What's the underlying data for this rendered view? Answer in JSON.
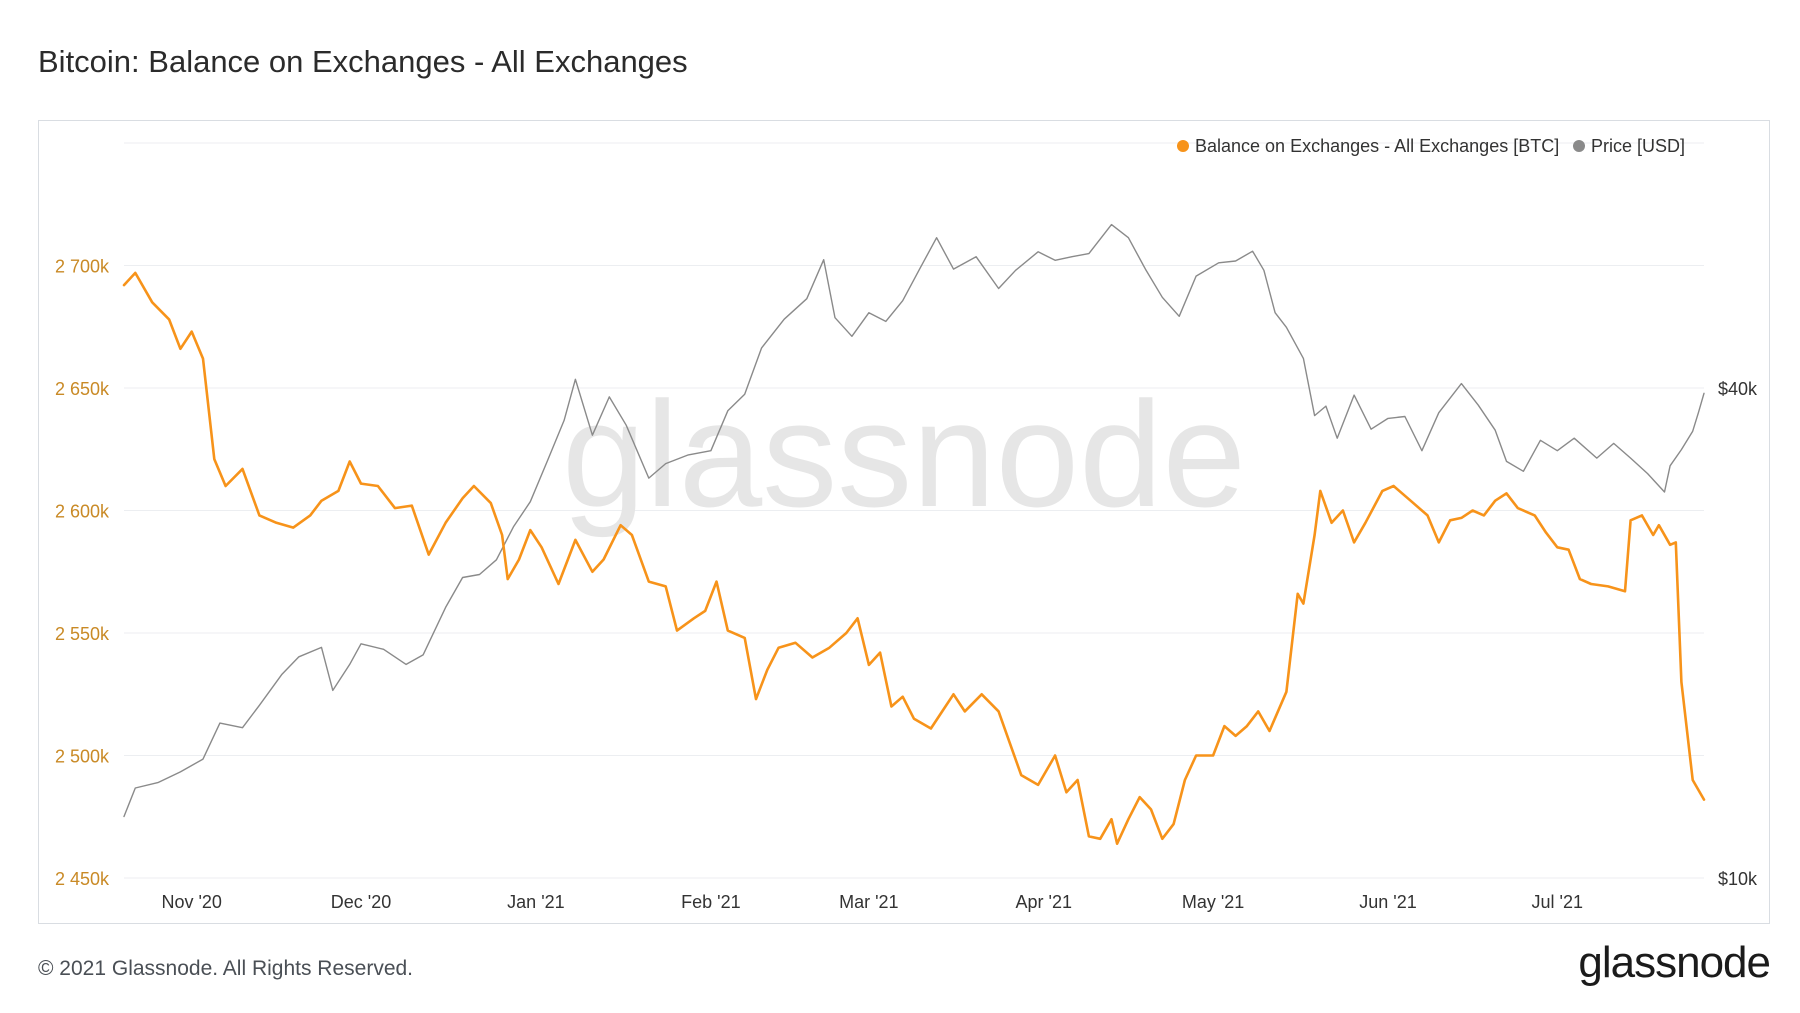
{
  "title": "Bitcoin: Balance on Exchanges - All Exchanges",
  "footer": "© 2021 Glassnode. All Rights Reserved.",
  "brand": "glassnode",
  "watermark": "glassnode",
  "chart_data": {
    "type": "line",
    "title": "Bitcoin: Balance on Exchanges - All Exchanges",
    "legend_position": "top-right",
    "grid": true,
    "x_range": [
      "2020-10-20",
      "2021-07-27"
    ],
    "x_ticks": [
      {
        "label": "Nov '20",
        "date": "2020-11-01"
      },
      {
        "label": "Dec '20",
        "date": "2020-12-01"
      },
      {
        "label": "Jan '21",
        "date": "2021-01-01"
      },
      {
        "label": "Feb '21",
        "date": "2021-02-01"
      },
      {
        "label": "Mar '21",
        "date": "2021-03-01"
      },
      {
        "label": "Apr '21",
        "date": "2021-04-01"
      },
      {
        "label": "May '21",
        "date": "2021-05-01"
      },
      {
        "label": "Jun '21",
        "date": "2021-06-01"
      },
      {
        "label": "Jul '21",
        "date": "2021-07-01"
      }
    ],
    "y_left": {
      "ylim": [
        2450000,
        2750000
      ],
      "ticks": [
        {
          "label": "2 450k",
          "value": 2450000
        },
        {
          "label": "2 500k",
          "value": 2500000
        },
        {
          "label": "2 550k",
          "value": 2550000
        },
        {
          "label": "2 600k",
          "value": 2600000
        },
        {
          "label": "2 650k",
          "value": 2650000
        },
        {
          "label": "2 700k",
          "value": 2700000
        }
      ]
    },
    "y_right": {
      "scale": "log",
      "ylim": [
        10000,
        80000
      ],
      "ticks": [
        {
          "label": "$10k",
          "value": 10000
        },
        {
          "label": "$40k",
          "value": 40000
        }
      ]
    },
    "series": [
      {
        "name": "Balance on Exchanges - All Exchanges [BTC]",
        "color": "#f7931a",
        "axis": "left",
        "points": [
          [
            "2020-10-20",
            2692000
          ],
          [
            "2020-10-22",
            2697000
          ],
          [
            "2020-10-25",
            2685000
          ],
          [
            "2020-10-28",
            2678000
          ],
          [
            "2020-10-30",
            2666000
          ],
          [
            "2020-11-01",
            2673000
          ],
          [
            "2020-11-03",
            2662000
          ],
          [
            "2020-11-05",
            2621000
          ],
          [
            "2020-11-07",
            2610000
          ],
          [
            "2020-11-10",
            2617000
          ],
          [
            "2020-11-13",
            2598000
          ],
          [
            "2020-11-16",
            2595000
          ],
          [
            "2020-11-19",
            2593000
          ],
          [
            "2020-11-22",
            2598000
          ],
          [
            "2020-11-24",
            2604000
          ],
          [
            "2020-11-27",
            2608000
          ],
          [
            "2020-11-29",
            2620000
          ],
          [
            "2020-12-01",
            2611000
          ],
          [
            "2020-12-04",
            2610000
          ],
          [
            "2020-12-07",
            2601000
          ],
          [
            "2020-12-10",
            2602000
          ],
          [
            "2020-12-13",
            2582000
          ],
          [
            "2020-12-16",
            2595000
          ],
          [
            "2020-12-19",
            2605000
          ],
          [
            "2020-12-21",
            2610000
          ],
          [
            "2020-12-24",
            2603000
          ],
          [
            "2020-12-26",
            2590000
          ],
          [
            "2020-12-27",
            2572000
          ],
          [
            "2020-12-29",
            2580000
          ],
          [
            "2020-12-31",
            2592000
          ],
          [
            "2021-01-02",
            2585000
          ],
          [
            "2021-01-05",
            2570000
          ],
          [
            "2021-01-08",
            2588000
          ],
          [
            "2021-01-11",
            2575000
          ],
          [
            "2021-01-13",
            2580000
          ],
          [
            "2021-01-16",
            2594000
          ],
          [
            "2021-01-18",
            2590000
          ],
          [
            "2021-01-21",
            2571000
          ],
          [
            "2021-01-24",
            2569000
          ],
          [
            "2021-01-26",
            2551000
          ],
          [
            "2021-01-29",
            2556000
          ],
          [
            "2021-01-31",
            2559000
          ],
          [
            "2021-02-02",
            2571000
          ],
          [
            "2021-02-04",
            2551000
          ],
          [
            "2021-02-07",
            2548000
          ],
          [
            "2021-02-09",
            2523000
          ],
          [
            "2021-02-11",
            2535000
          ],
          [
            "2021-02-13",
            2544000
          ],
          [
            "2021-02-16",
            2546000
          ],
          [
            "2021-02-19",
            2540000
          ],
          [
            "2021-02-22",
            2544000
          ],
          [
            "2021-02-25",
            2550000
          ],
          [
            "2021-02-27",
            2556000
          ],
          [
            "2021-03-01",
            2537000
          ],
          [
            "2021-03-03",
            2542000
          ],
          [
            "2021-03-05",
            2520000
          ],
          [
            "2021-03-07",
            2524000
          ],
          [
            "2021-03-09",
            2515000
          ],
          [
            "2021-03-12",
            2511000
          ],
          [
            "2021-03-14",
            2518000
          ],
          [
            "2021-03-16",
            2525000
          ],
          [
            "2021-03-18",
            2518000
          ],
          [
            "2021-03-21",
            2525000
          ],
          [
            "2021-03-24",
            2518000
          ],
          [
            "2021-03-26",
            2505000
          ],
          [
            "2021-03-28",
            2492000
          ],
          [
            "2021-03-31",
            2488000
          ],
          [
            "2021-04-03",
            2500000
          ],
          [
            "2021-04-05",
            2485000
          ],
          [
            "2021-04-07",
            2490000
          ],
          [
            "2021-04-09",
            2467000
          ],
          [
            "2021-04-11",
            2466000
          ],
          [
            "2021-04-13",
            2474000
          ],
          [
            "2021-04-14",
            2464000
          ],
          [
            "2021-04-16",
            2474000
          ],
          [
            "2021-04-18",
            2483000
          ],
          [
            "2021-04-20",
            2478000
          ],
          [
            "2021-04-22",
            2466000
          ],
          [
            "2021-04-24",
            2472000
          ],
          [
            "2021-04-26",
            2490000
          ],
          [
            "2021-04-28",
            2500000
          ],
          [
            "2021-05-01",
            2500000
          ],
          [
            "2021-05-03",
            2512000
          ],
          [
            "2021-05-05",
            2508000
          ],
          [
            "2021-05-07",
            2512000
          ],
          [
            "2021-05-09",
            2518000
          ],
          [
            "2021-05-11",
            2510000
          ],
          [
            "2021-05-14",
            2526000
          ],
          [
            "2021-05-16",
            2566000
          ],
          [
            "2021-05-17",
            2562000
          ],
          [
            "2021-05-19",
            2590000
          ],
          [
            "2021-05-20",
            2608000
          ],
          [
            "2021-05-22",
            2595000
          ],
          [
            "2021-05-24",
            2600000
          ],
          [
            "2021-05-26",
            2587000
          ],
          [
            "2021-05-28",
            2595000
          ],
          [
            "2021-05-31",
            2608000
          ],
          [
            "2021-06-02",
            2610000
          ],
          [
            "2021-06-05",
            2604000
          ],
          [
            "2021-06-08",
            2598000
          ],
          [
            "2021-06-10",
            2587000
          ],
          [
            "2021-06-12",
            2596000
          ],
          [
            "2021-06-14",
            2597000
          ],
          [
            "2021-06-16",
            2600000
          ],
          [
            "2021-06-18",
            2598000
          ],
          [
            "2021-06-20",
            2604000
          ],
          [
            "2021-06-22",
            2607000
          ],
          [
            "2021-06-24",
            2601000
          ],
          [
            "2021-06-27",
            2598000
          ],
          [
            "2021-06-29",
            2591000
          ],
          [
            "2021-07-01",
            2585000
          ],
          [
            "2021-07-03",
            2584000
          ],
          [
            "2021-07-05",
            2572000
          ],
          [
            "2021-07-07",
            2570000
          ],
          [
            "2021-07-10",
            2569000
          ],
          [
            "2021-07-13",
            2567000
          ],
          [
            "2021-07-14",
            2596000
          ],
          [
            "2021-07-16",
            2598000
          ],
          [
            "2021-07-18",
            2590000
          ],
          [
            "2021-07-19",
            2594000
          ],
          [
            "2021-07-21",
            2586000
          ],
          [
            "2021-07-22",
            2587000
          ],
          [
            "2021-07-23",
            2530000
          ],
          [
            "2021-07-25",
            2490000
          ],
          [
            "2021-07-27",
            2482000
          ]
        ]
      },
      {
        "name": "Price [USD]",
        "color": "#8a8a8a",
        "axis": "right",
        "points": [
          [
            "2020-10-20",
            11900
          ],
          [
            "2020-10-22",
            12900
          ],
          [
            "2020-10-26",
            13100
          ],
          [
            "2020-10-30",
            13500
          ],
          [
            "2020-11-03",
            14000
          ],
          [
            "2020-11-06",
            15500
          ],
          [
            "2020-11-10",
            15300
          ],
          [
            "2020-11-13",
            16300
          ],
          [
            "2020-11-17",
            17800
          ],
          [
            "2020-11-20",
            18700
          ],
          [
            "2020-11-24",
            19200
          ],
          [
            "2020-11-26",
            17000
          ],
          [
            "2020-11-29",
            18300
          ],
          [
            "2020-12-01",
            19400
          ],
          [
            "2020-12-05",
            19100
          ],
          [
            "2020-12-09",
            18300
          ],
          [
            "2020-12-12",
            18800
          ],
          [
            "2020-12-16",
            21500
          ],
          [
            "2020-12-19",
            23400
          ],
          [
            "2020-12-22",
            23600
          ],
          [
            "2020-12-25",
            24600
          ],
          [
            "2020-12-28",
            27000
          ],
          [
            "2020-12-31",
            29000
          ],
          [
            "2021-01-03",
            32500
          ],
          [
            "2021-01-06",
            36500
          ],
          [
            "2021-01-08",
            41000
          ],
          [
            "2021-01-11",
            35000
          ],
          [
            "2021-01-14",
            39000
          ],
          [
            "2021-01-17",
            36000
          ],
          [
            "2021-01-21",
            31000
          ],
          [
            "2021-01-24",
            32300
          ],
          [
            "2021-01-28",
            33100
          ],
          [
            "2021-02-01",
            33500
          ],
          [
            "2021-02-04",
            37500
          ],
          [
            "2021-02-07",
            39300
          ],
          [
            "2021-02-10",
            44800
          ],
          [
            "2021-02-14",
            48600
          ],
          [
            "2021-02-18",
            51500
          ],
          [
            "2021-02-21",
            57500
          ],
          [
            "2021-02-23",
            48800
          ],
          [
            "2021-02-26",
            46300
          ],
          [
            "2021-03-01",
            49500
          ],
          [
            "2021-03-04",
            48300
          ],
          [
            "2021-03-07",
            51200
          ],
          [
            "2021-03-10",
            56000
          ],
          [
            "2021-03-13",
            61200
          ],
          [
            "2021-03-16",
            56000
          ],
          [
            "2021-03-20",
            58000
          ],
          [
            "2021-03-24",
            53000
          ],
          [
            "2021-03-27",
            55800
          ],
          [
            "2021-03-31",
            58800
          ],
          [
            "2021-04-03",
            57400
          ],
          [
            "2021-04-06",
            58000
          ],
          [
            "2021-04-09",
            58500
          ],
          [
            "2021-04-13",
            63500
          ],
          [
            "2021-04-16",
            61200
          ],
          [
            "2021-04-19",
            56000
          ],
          [
            "2021-04-22",
            51700
          ],
          [
            "2021-04-25",
            49000
          ],
          [
            "2021-04-28",
            54900
          ],
          [
            "2021-05-02",
            57000
          ],
          [
            "2021-05-05",
            57300
          ],
          [
            "2021-05-08",
            58900
          ],
          [
            "2021-05-10",
            55800
          ],
          [
            "2021-05-12",
            49500
          ],
          [
            "2021-05-14",
            47500
          ],
          [
            "2021-05-17",
            43500
          ],
          [
            "2021-05-19",
            37000
          ],
          [
            "2021-05-21",
            38000
          ],
          [
            "2021-05-23",
            34700
          ],
          [
            "2021-05-26",
            39200
          ],
          [
            "2021-05-29",
            35600
          ],
          [
            "2021-06-01",
            36700
          ],
          [
            "2021-06-04",
            36900
          ],
          [
            "2021-06-07",
            33500
          ],
          [
            "2021-06-10",
            37300
          ],
          [
            "2021-06-14",
            40500
          ],
          [
            "2021-06-17",
            38100
          ],
          [
            "2021-06-20",
            35500
          ],
          [
            "2021-06-22",
            32500
          ],
          [
            "2021-06-25",
            31600
          ],
          [
            "2021-06-28",
            34500
          ],
          [
            "2021-07-01",
            33500
          ],
          [
            "2021-07-04",
            34700
          ],
          [
            "2021-07-08",
            32800
          ],
          [
            "2021-07-11",
            34200
          ],
          [
            "2021-07-14",
            32800
          ],
          [
            "2021-07-17",
            31400
          ],
          [
            "2021-07-20",
            29800
          ],
          [
            "2021-07-21",
            32100
          ],
          [
            "2021-07-23",
            33600
          ],
          [
            "2021-07-25",
            35400
          ],
          [
            "2021-07-26",
            37300
          ],
          [
            "2021-07-27",
            39400
          ]
        ]
      }
    ]
  }
}
